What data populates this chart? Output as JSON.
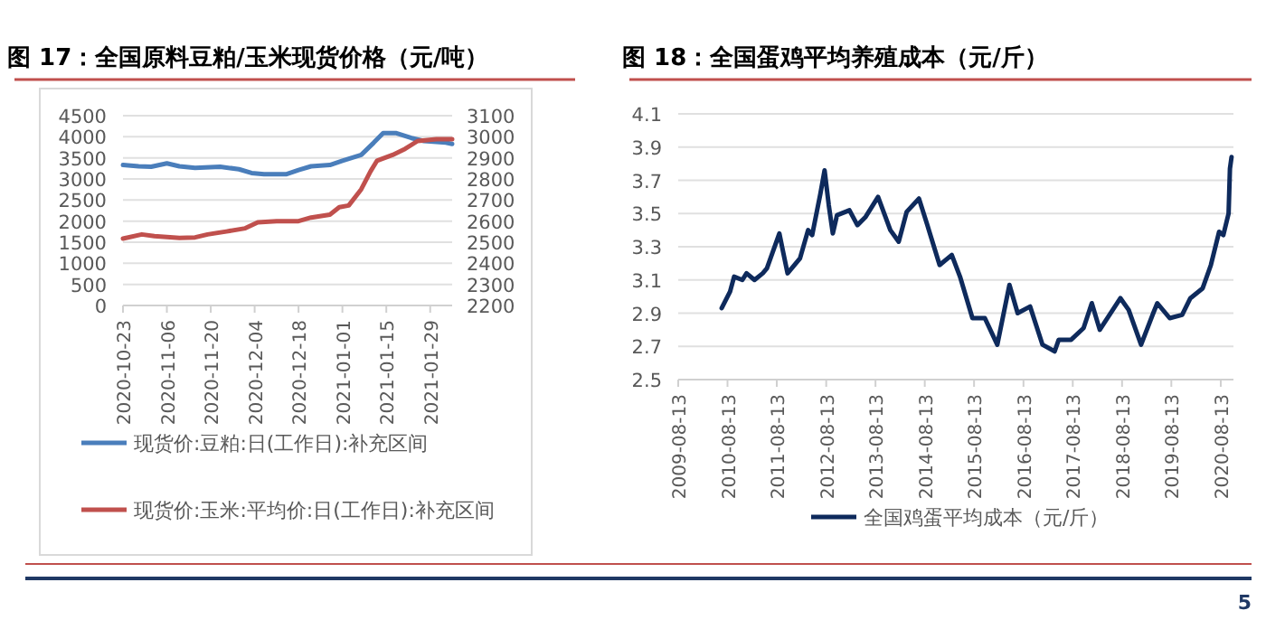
{
  "chart_data": [
    {
      "type": "line",
      "title": "图 17：全国原料豆粕/玉米现货价格（元/吨）",
      "xlim": [
        "2020-10-23",
        "2021-02-05"
      ],
      "xticks": [
        "2020-10-23",
        "2020-11-06",
        "2020-11-20",
        "2020-12-04",
        "2020-12-18",
        "2021-01-01",
        "2021-01-15",
        "2021-01-29"
      ],
      "ylim": [
        0,
        4500
      ],
      "yticks": [
        0,
        500,
        1000,
        1500,
        2000,
        2500,
        3000,
        3500,
        4000,
        4500
      ],
      "y2lim": [
        2200,
        3100
      ],
      "y2ticks": [
        2200,
        2300,
        2400,
        2500,
        2600,
        2700,
        2800,
        2900,
        3000,
        3100
      ],
      "grid": "y",
      "legend": "bottom",
      "series": [
        {
          "name": "现货价:豆粕:日(工作日):补充区间",
          "color": "#4a7ebb",
          "x": [
            "2020-10-23",
            "2020-10-28",
            "2020-11-01",
            "2020-11-06",
            "2020-11-10",
            "2020-11-15",
            "2020-11-23",
            "2020-11-29",
            "2020-12-03",
            "2020-12-07",
            "2020-12-14",
            "2020-12-18",
            "2020-12-22",
            "2020-12-28",
            "2021-01-01",
            "2021-01-07",
            "2021-01-11",
            "2021-01-14",
            "2021-01-18",
            "2021-01-23",
            "2021-01-27",
            "2021-02-03",
            "2021-02-05"
          ],
          "values": [
            3330,
            3300,
            3290,
            3370,
            3300,
            3260,
            3290,
            3230,
            3140,
            3110,
            3110,
            3210,
            3300,
            3330,
            3430,
            3570,
            3860,
            4090,
            4090,
            3970,
            3900,
            3860,
            3830
          ]
        },
        {
          "name": "现货价:玉米:平均价:日(工作日):补充区间",
          "color": "#c0504d",
          "axis": "y2",
          "x": [
            "2020-10-23",
            "2020-10-29",
            "2020-11-02",
            "2020-11-10",
            "2020-11-15",
            "2020-11-19",
            "2020-11-25",
            "2020-12-01",
            "2020-12-05",
            "2020-12-11",
            "2020-12-18",
            "2020-12-22",
            "2020-12-28",
            "2020-12-31",
            "2021-01-03",
            "2021-01-07",
            "2021-01-10",
            "2021-01-12",
            "2021-01-17",
            "2021-01-21",
            "2021-01-25",
            "2021-01-31",
            "2021-02-05"
          ],
          "values": [
            2517,
            2537,
            2529,
            2520,
            2523,
            2537,
            2551,
            2566,
            2594,
            2600,
            2600,
            2617,
            2631,
            2666,
            2674,
            2751,
            2837,
            2886,
            2914,
            2943,
            2980,
            2989,
            2989
          ]
        }
      ]
    },
    {
      "type": "line",
      "title": "图 18：全国蛋鸡平均养殖成本（元/斤）",
      "xlim": [
        "2009-08-13",
        "2020-11-15"
      ],
      "xticks": [
        "2009-08-13",
        "2010-08-13",
        "2011-08-13",
        "2012-08-13",
        "2013-08-13",
        "2014-08-13",
        "2015-08-13",
        "2016-08-13",
        "2017-08-13",
        "2018-08-13",
        "2019-08-13",
        "2020-08-13"
      ],
      "ylim": [
        2.5,
        4.1
      ],
      "yticks": [
        2.5,
        2.7,
        2.9,
        3.1,
        3.3,
        3.5,
        3.7,
        3.9,
        4.1
      ],
      "grid": "y",
      "legend": "bottom",
      "annotations": [
        "5"
      ],
      "series": [
        {
          "name": "全国鸡蛋平均成本（元/斤）",
          "color": "#0e2a5c",
          "x": [
            "2010-07",
            "2010-09",
            "2010-10",
            "2010-12",
            "2011-01",
            "2011-03",
            "2011-05",
            "2011-06",
            "2011-09",
            "2011-10",
            "2011-11",
            "2012-02",
            "2012-04",
            "2012-05",
            "2012-07",
            "2012-08",
            "2012-09",
            "2012-10",
            "2012-11",
            "2013-02",
            "2013-04",
            "2013-06",
            "2013-09",
            "2013-12",
            "2014-02",
            "2014-04",
            "2014-07",
            "2014-09",
            "2014-12",
            "2015-03",
            "2015-05",
            "2015-08",
            "2015-11",
            "2016-02",
            "2016-05",
            "2016-07",
            "2016-10",
            "2017-01",
            "2017-04",
            "2017-05",
            "2017-08",
            "2017-11",
            "2018-01",
            "2018-03",
            "2018-08",
            "2018-10",
            "2019-01",
            "2019-04",
            "2019-05",
            "2019-08",
            "2019-11",
            "2020-01",
            "2020-04",
            "2020-06",
            "2020-08-01",
            "2020-09-01",
            "2020-10-10",
            "2020-10-20",
            "2020-11-01"
          ],
          "values": [
            2.93,
            3.03,
            3.12,
            3.1,
            3.14,
            3.1,
            3.14,
            3.17,
            3.38,
            3.26,
            3.14,
            3.23,
            3.4,
            3.37,
            3.62,
            3.76,
            3.55,
            3.38,
            3.49,
            3.52,
            3.43,
            3.48,
            3.6,
            3.4,
            3.33,
            3.51,
            3.59,
            3.43,
            3.19,
            3.25,
            3.12,
            2.87,
            2.87,
            2.71,
            3.07,
            2.9,
            2.94,
            2.71,
            2.67,
            2.74,
            2.74,
            2.81,
            2.96,
            2.8,
            2.99,
            2.92,
            2.71,
            2.9,
            2.96,
            2.87,
            2.89,
            2.99,
            3.05,
            3.19,
            3.39,
            3.37,
            3.5,
            3.77,
            3.84
          ]
        }
      ]
    }
  ]
}
